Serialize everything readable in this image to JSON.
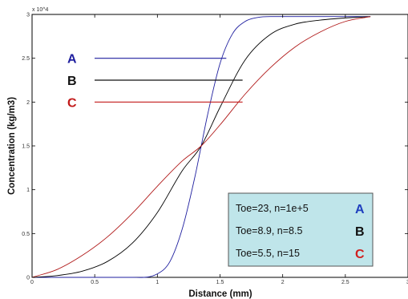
{
  "chart_data": {
    "type": "line",
    "xlabel": "Distance (mm)",
    "ylabel": "Concentration (kg/m3)",
    "xlim": [
      0,
      3
    ],
    "ylim": [
      0,
      30000
    ],
    "x_ticks": [
      "0",
      "0.5",
      "1",
      "1.5",
      "2",
      "2.5",
      "3"
    ],
    "y_ticks": [
      "0",
      "0.5",
      "1",
      "1.5",
      "2",
      "2.5",
      "3"
    ],
    "y_multiplier": "x 10^4",
    "grid": false,
    "series": [
      {
        "name": "A",
        "color": "#1f1f9f",
        "x": [
          0,
          0.8,
          1.0,
          1.1,
          1.2,
          1.3,
          1.35,
          1.4,
          1.5,
          1.6,
          1.7,
          1.8,
          1.9,
          2.0,
          2.7
        ],
        "y": [
          0,
          0,
          400,
          1800,
          5600,
          11500,
          15000,
          18500,
          24400,
          27800,
          29200,
          29650,
          29750,
          29750,
          29750
        ]
      },
      {
        "name": "B",
        "color": "#000000",
        "x": [
          0,
          0.2,
          0.4,
          0.6,
          0.8,
          1.0,
          1.2,
          1.35,
          1.5,
          1.7,
          1.9,
          2.1,
          2.3,
          2.5,
          2.7
        ],
        "y": [
          0,
          200,
          700,
          1800,
          3900,
          7400,
          12200,
          15000,
          19400,
          24800,
          27700,
          28900,
          29350,
          29600,
          29750
        ]
      },
      {
        "name": "C",
        "color": "#b01818",
        "x": [
          0,
          0.2,
          0.4,
          0.6,
          0.8,
          1.0,
          1.2,
          1.35,
          1.5,
          1.7,
          1.9,
          2.1,
          2.3,
          2.5,
          2.7
        ],
        "y": [
          0,
          900,
          2500,
          4600,
          7300,
          10400,
          13300,
          15000,
          17400,
          20900,
          23900,
          26300,
          28000,
          29200,
          29750
        ]
      }
    ],
    "annotations": [
      {
        "label": "A",
        "color": "#1f1f9f",
        "y": 25000,
        "x_end": 1.55
      },
      {
        "label": "B",
        "color": "#111111",
        "y": 22500,
        "x_end": 1.68
      },
      {
        "label": "C",
        "color": "#c21a1a",
        "y": 20000,
        "x_end": 1.68
      }
    ],
    "legend": {
      "placement": "bottom-right",
      "background": "#bfe5ea",
      "entries": [
        {
          "text": "Toe=23, n=1e+5",
          "letter": "A",
          "color": "#1f3fbf"
        },
        {
          "text": "Toe=8.9, n=8.5",
          "letter": "B",
          "color": "#111111"
        },
        {
          "text": "Toe=5.5, n=15",
          "letter": "C",
          "color": "#d02020"
        }
      ]
    }
  }
}
